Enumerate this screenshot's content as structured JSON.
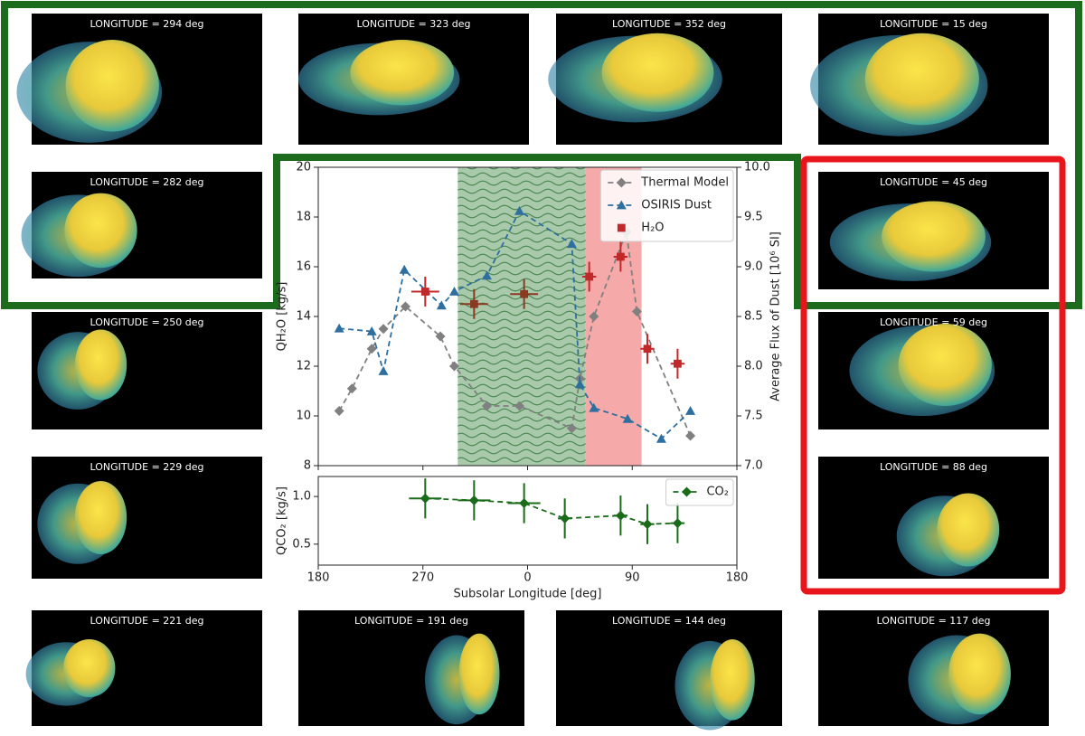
{
  "panels": [
    {
      "label": "LONGITUDE = 294 deg"
    },
    {
      "label": "LONGITUDE = 323 deg"
    },
    {
      "label": "LONGITUDE = 352 deg"
    },
    {
      "label": "LONGITUDE = 15 deg"
    },
    {
      "label": "LONGITUDE = 282 deg"
    },
    {
      "label": "LONGITUDE = 45 deg"
    },
    {
      "label": "LONGITUDE = 250 deg"
    },
    {
      "label": "LONGITUDE = 59 deg"
    },
    {
      "label": "LONGITUDE = 229 deg"
    },
    {
      "label": "LONGITUDE = 88 deg"
    },
    {
      "label": "LONGITUDE = 221 deg"
    },
    {
      "label": "LONGITUDE = 191 deg"
    },
    {
      "label": "LONGITUDE = 144 deg"
    },
    {
      "label": "LONGITUDE = 117 deg"
    }
  ],
  "chart_data": [
    {
      "type": "line",
      "y_label": "QH₂O [kg/s]",
      "y2_label": "Average Flux of Dust [10⁶ SI]",
      "xlim": [
        180,
        540
      ],
      "xticks": [
        180,
        270,
        360,
        450,
        540
      ],
      "show_xtick_labels": false,
      "ylim": [
        8,
        20
      ],
      "yticks": [
        8,
        10,
        12,
        14,
        16,
        18,
        20
      ],
      "y2lim": [
        7,
        10
      ],
      "y2ticks": [
        {
          "value": 7,
          "label": "7.0"
        },
        7.5,
        {
          "value": 8,
          "label": "8.0"
        },
        8.5,
        {
          "value": 9,
          "label": "9.0"
        },
        9.5,
        {
          "value": 10,
          "label": "10.0"
        }
      ],
      "legend": "upper right",
      "regions": [
        {
          "xrange": [
            300,
            410
          ],
          "color": "#a9c9ab",
          "pattern": "wave"
        },
        {
          "xrange": [
            410,
            458
          ],
          "color": "#f6a9a9"
        }
      ],
      "series": [
        {
          "name": "Thermal Model",
          "color": "#808080",
          "marker": "diamond",
          "linestyle": "dashed",
          "x": [
            198,
            209,
            226,
            236,
            255,
            285,
            297,
            325,
            353,
            398,
            405,
            417,
            445,
            454,
            500
          ],
          "values": [
            10.2,
            11.1,
            12.7,
            13.5,
            14.4,
            13.2,
            12.0,
            10.4,
            10.4,
            9.5,
            11.5,
            14.0,
            17.4,
            14.2,
            9.2
          ]
        },
        {
          "name": "OSIRIS Dust",
          "color": "#2f6f9f",
          "marker": "triangle",
          "linestyle": "dashed",
          "axis": "y2",
          "x": [
            198,
            226,
            236,
            254,
            286,
            297,
            325,
            353,
            398,
            405,
            417,
            446,
            475,
            500
          ],
          "values": [
            8.38,
            8.35,
            7.95,
            8.97,
            8.61,
            8.75,
            8.91,
            9.56,
            9.23,
            7.82,
            7.58,
            7.47,
            7.27,
            7.55
          ]
        },
        {
          "name": "H₂O",
          "color": "#c0282a",
          "marker": "square",
          "linestyle": "none",
          "x": [
            272,
            314,
            357,
            413,
            440,
            463,
            489
          ],
          "values": [
            15.0,
            14.5,
            14.9,
            15.6,
            16.4,
            12.7,
            12.1
          ],
          "yerr": [
            0.6,
            0.6,
            0.6,
            0.6,
            0.6,
            0.6,
            0.6
          ],
          "xerr": [
            12,
            12,
            12,
            6,
            6,
            6,
            6
          ],
          "point_colors": [
            "#c0282a",
            "#8a3a22",
            "#8a3a22",
            "#c0282a",
            "#c0282a",
            "#c0282a",
            "#c0282a"
          ]
        }
      ]
    },
    {
      "type": "line",
      "y_label": "QCO₂ [kg/s]",
      "x_label": "Subsolar Longitude [deg]",
      "xlim": [
        180,
        540
      ],
      "xticks": [
        180,
        270,
        {
          "value": 360,
          "label": "0"
        },
        {
          "value": 450,
          "label": "90"
        },
        {
          "value": 540,
          "label": "180"
        }
      ],
      "show_xtick_labels": true,
      "ylim": [
        0.28,
        1.21
      ],
      "yticks": [
        0.5,
        {
          "value": 1,
          "label": "1.0"
        }
      ],
      "legend": "upper right",
      "series": [
        {
          "name": "CO₂",
          "color": "#1a6b1a",
          "marker": "diamond",
          "linestyle": "dashed",
          "x": [
            272,
            314,
            357,
            392,
            440,
            463,
            489
          ],
          "values": [
            0.98,
            0.96,
            0.93,
            0.77,
            0.8,
            0.71,
            0.72
          ],
          "yerr": [
            0.21,
            0.21,
            0.21,
            0.21,
            0.21,
            0.21,
            0.21
          ],
          "xerr": [
            14,
            14,
            14,
            6,
            6,
            6,
            6
          ]
        }
      ]
    }
  ]
}
